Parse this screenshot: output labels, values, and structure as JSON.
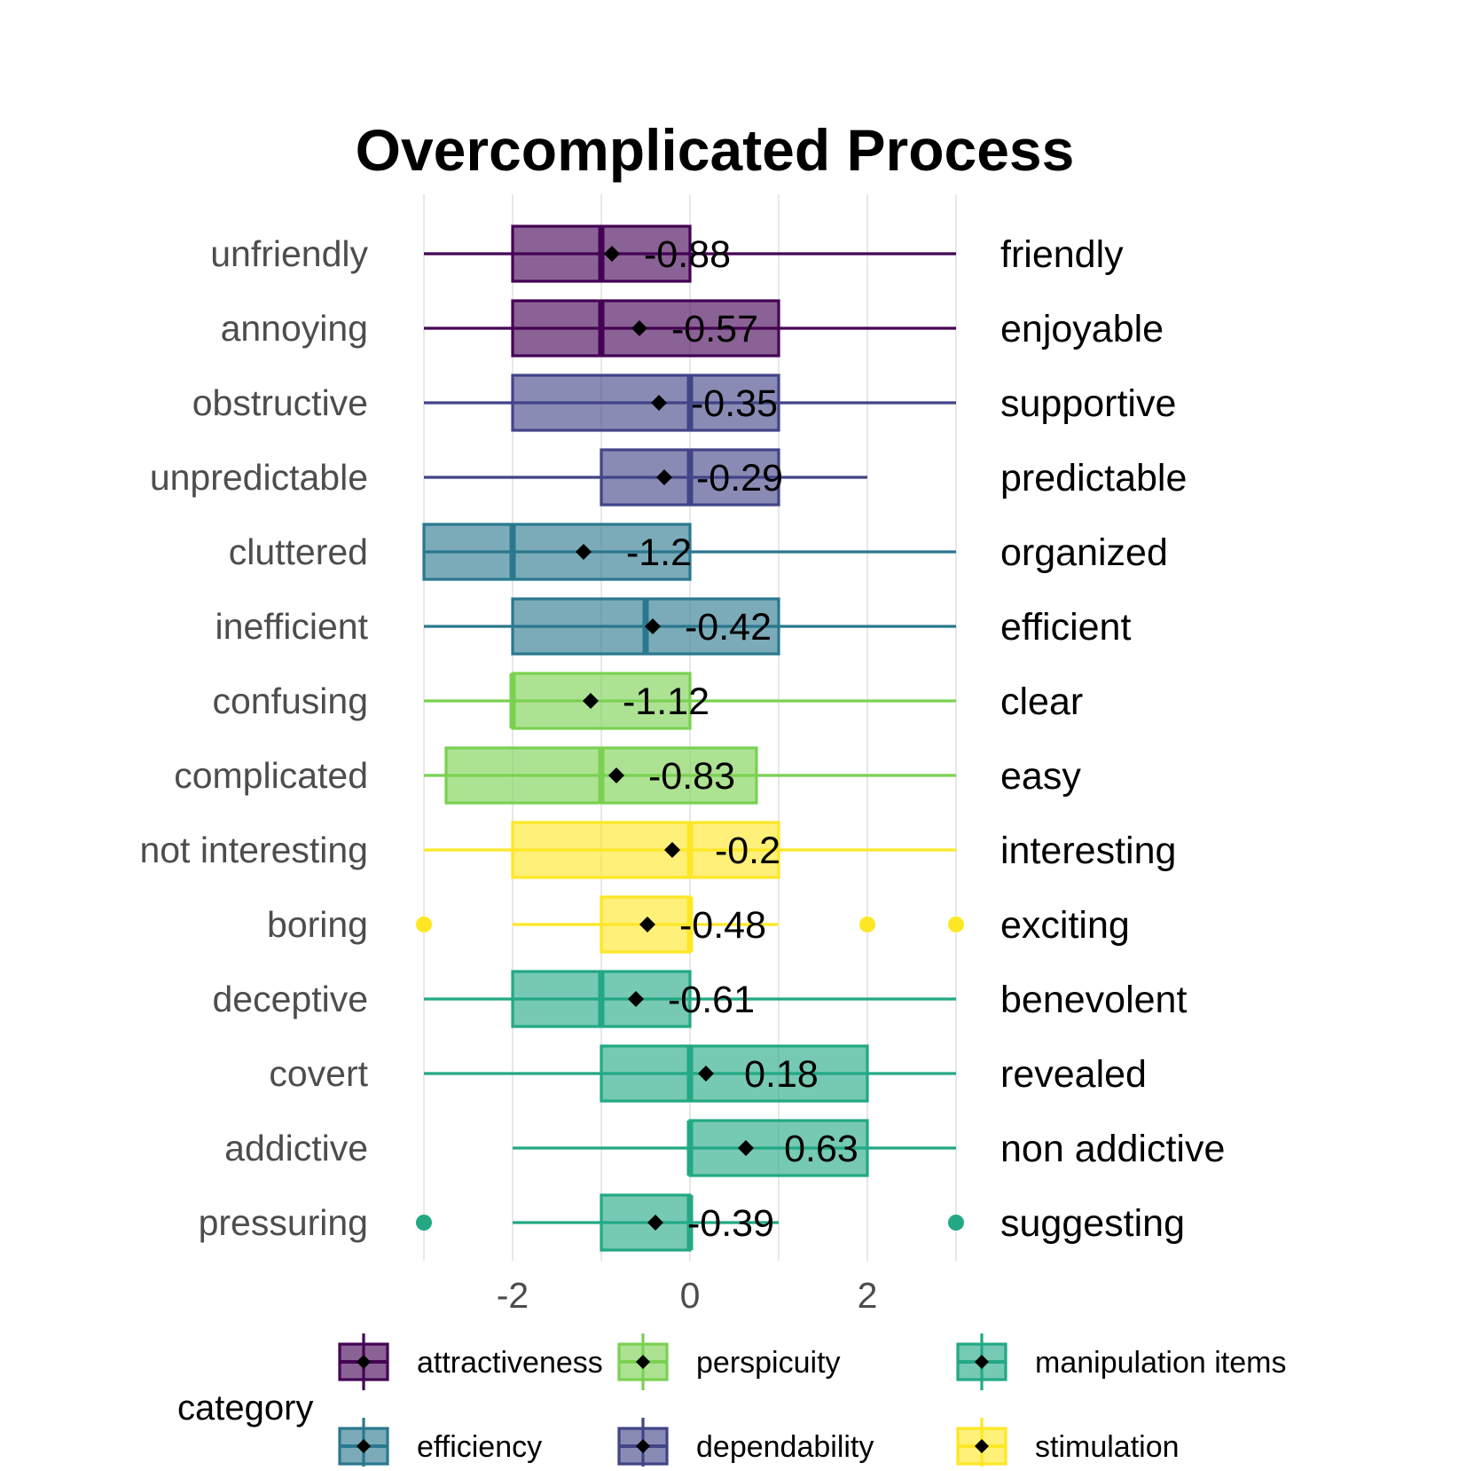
{
  "chart_data": {
    "type": "box",
    "title": "Overcomplicated Process",
    "xlim": [
      -3,
      3
    ],
    "x_ticks": [
      -2,
      0,
      2
    ],
    "x_tick_labels": [
      "-2",
      "0",
      "2"
    ],
    "grid": true,
    "legend": {
      "title": "category",
      "position": "bottom",
      "entries": [
        {
          "name": "attractiveness",
          "color": "#440154"
        },
        {
          "name": "efficiency",
          "color": "#2a788e"
        },
        {
          "name": "perspicuity",
          "color": "#7ad151"
        },
        {
          "name": "dependability",
          "color": "#414487"
        },
        {
          "name": "manipulation items",
          "color": "#22a884"
        },
        {
          "name": "stimulation",
          "color": "#fde725"
        }
      ]
    },
    "items": [
      {
        "left": "unfriendly",
        "right": "friendly",
        "category": "attractiveness",
        "whisker_low": -3,
        "q1": -2,
        "median": -1,
        "q3": 0,
        "whisker_high": 3,
        "mean": -0.88,
        "mean_label": "-0.88",
        "outliers": []
      },
      {
        "left": "annoying",
        "right": "enjoyable",
        "category": "attractiveness",
        "whisker_low": -3,
        "q1": -2,
        "median": -1,
        "q3": 1,
        "whisker_high": 3,
        "mean": -0.57,
        "mean_label": "-0.57",
        "outliers": []
      },
      {
        "left": "obstructive",
        "right": "supportive",
        "category": "dependability",
        "whisker_low": -3,
        "q1": -2,
        "median": 0,
        "q3": 1,
        "whisker_high": 3,
        "mean": -0.35,
        "mean_label": "-0.35",
        "outliers": []
      },
      {
        "left": "unpredictable",
        "right": "predictable",
        "category": "dependability",
        "whisker_low": -3,
        "q1": -1,
        "median": 0,
        "q3": 1,
        "whisker_high": 2,
        "mean": -0.29,
        "mean_label": "-0.29",
        "outliers": []
      },
      {
        "left": "cluttered",
        "right": "organized",
        "category": "efficiency",
        "whisker_low": -3,
        "q1": -3,
        "median": -2,
        "q3": 0,
        "whisker_high": 3,
        "mean": -1.2,
        "mean_label": "-1.2",
        "outliers": []
      },
      {
        "left": "inefficient",
        "right": "efficient",
        "category": "efficiency",
        "whisker_low": -3,
        "q1": -2,
        "median": -0.5,
        "q3": 1,
        "whisker_high": 3,
        "mean": -0.42,
        "mean_label": "-0.42",
        "outliers": []
      },
      {
        "left": "confusing",
        "right": "clear",
        "category": "perspicuity",
        "whisker_low": -3,
        "q1": -2,
        "median": -2,
        "q3": 0,
        "whisker_high": 3,
        "mean": -1.12,
        "mean_label": "-1.12",
        "outliers": []
      },
      {
        "left": "complicated",
        "right": "easy",
        "category": "perspicuity",
        "whisker_low": -3,
        "q1": -2.75,
        "median": -1,
        "q3": 0.75,
        "whisker_high": 3,
        "mean": -0.83,
        "mean_label": "-0.83",
        "outliers": []
      },
      {
        "left": "not interesting",
        "right": "interesting",
        "category": "stimulation",
        "whisker_low": -3,
        "q1": -2,
        "median": 0,
        "q3": 1,
        "whisker_high": 3,
        "mean": -0.2,
        "mean_label": "-0.2",
        "outliers": []
      },
      {
        "left": "boring",
        "right": "exciting",
        "category": "stimulation",
        "whisker_low": -2,
        "q1": -1,
        "median": 0,
        "q3": 0,
        "whisker_high": 1,
        "mean": -0.48,
        "mean_label": "-0.48",
        "outliers": [
          -3,
          2,
          3
        ]
      },
      {
        "left": "deceptive",
        "right": "benevolent",
        "category": "manipulation items",
        "whisker_low": -3,
        "q1": -2,
        "median": -1,
        "q3": 0,
        "whisker_high": 3,
        "mean": -0.61,
        "mean_label": "-0.61",
        "outliers": []
      },
      {
        "left": "covert",
        "right": "revealed",
        "category": "manipulation items",
        "whisker_low": -3,
        "q1": -1,
        "median": 0,
        "q3": 2,
        "whisker_high": 3,
        "mean": 0.18,
        "mean_label": "0.18",
        "outliers": []
      },
      {
        "left": "addictive",
        "right": "non addictive",
        "category": "manipulation items",
        "whisker_low": -2,
        "q1": 0,
        "median": 0,
        "q3": 2,
        "whisker_high": 3,
        "mean": 0.63,
        "mean_label": "0.63",
        "outliers": []
      },
      {
        "left": "pressuring",
        "right": "suggesting",
        "category": "manipulation items",
        "whisker_low": -2,
        "q1": -1,
        "median": 0,
        "q3": 0,
        "whisker_high": 1,
        "mean": -0.39,
        "mean_label": "-0.39",
        "outliers": [
          -3,
          3
        ]
      }
    ]
  }
}
